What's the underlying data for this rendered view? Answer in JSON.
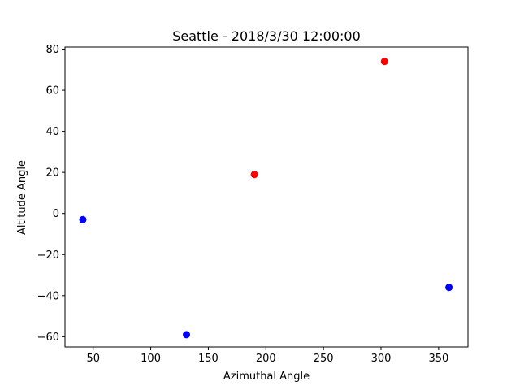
{
  "chart_data": {
    "type": "scatter",
    "title": "Seattle - 2018/3/30 12:00:00",
    "xlabel": "Azimuthal Angle",
    "ylabel": "Altitude Angle",
    "xlim": [
      25.5,
      375.5
    ],
    "ylim": [
      -65,
      81
    ],
    "xticks": [
      "50",
      "100",
      "150",
      "200",
      "250",
      "300",
      "350"
    ],
    "xtick_values": [
      50,
      100,
      150,
      200,
      250,
      300,
      350
    ],
    "yticks": [
      "−60",
      "−40",
      "−20",
      "0",
      "20",
      "40",
      "60",
      "80"
    ],
    "ytick_values": [
      -60,
      -40,
      -20,
      0,
      20,
      40,
      60,
      80
    ],
    "grid": false,
    "colors": {
      "red": "#ff0000",
      "blue": "#0000ff"
    },
    "series": [
      {
        "color": "#ff0000",
        "points": [
          {
            "x": 190,
            "y": 19
          },
          {
            "x": 303,
            "y": 74
          }
        ]
      },
      {
        "color": "#0000ff",
        "points": [
          {
            "x": 41,
            "y": -3
          },
          {
            "x": 131,
            "y": -59
          },
          {
            "x": 359,
            "y": -36
          }
        ]
      }
    ]
  }
}
